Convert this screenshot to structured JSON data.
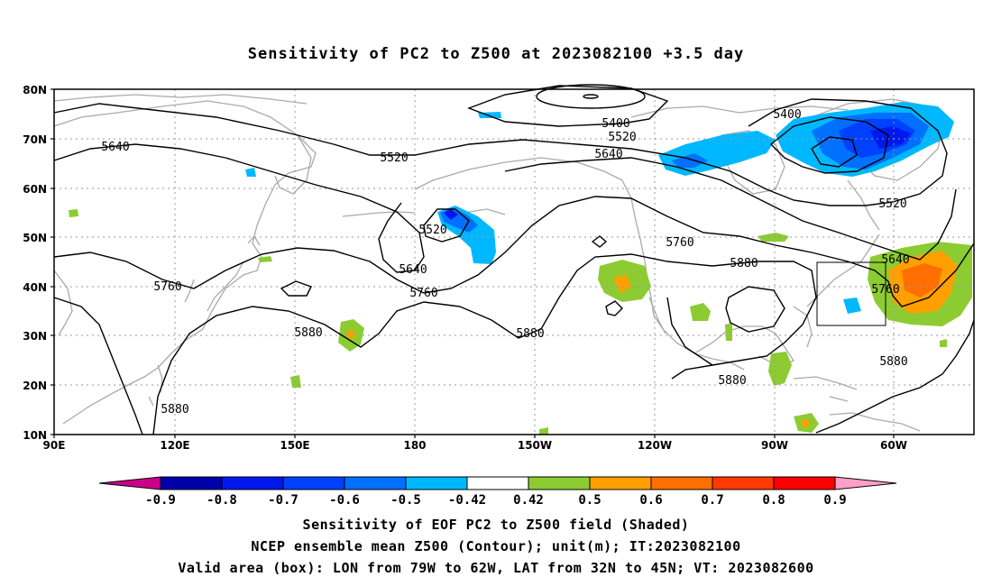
{
  "title": "Sensitivity of PC2 to Z500 at 2023082100 +3.5 day",
  "lat_labels": [
    "80N",
    "70N",
    "60N",
    "50N",
    "40N",
    "30N",
    "20N",
    "10N"
  ],
  "lon_labels": [
    "90E",
    "120E",
    "150E",
    "180",
    "150W",
    "120W",
    "90W",
    "60W"
  ],
  "contour_labels": {
    "c5400a": "5400",
    "c5400b": "5400",
    "c5520a": "5520",
    "c5520b": "5520",
    "c5520c": "5520",
    "c5520d": "5520",
    "c5640a": "5640",
    "c5640b": "5640",
    "c5640c": "5640",
    "c5640d": "5640",
    "c5760a": "5760",
    "c5760b": "5760",
    "c5760c": "5760",
    "c5760d": "5760",
    "c5880a": "5880",
    "c5880b": "5880",
    "c5880c": "5880",
    "c5880d": "5880",
    "c5880e": "5880",
    "c5880f": "5880"
  },
  "colorbar": {
    "labels": [
      "-0.9",
      "-0.8",
      "-0.7",
      "-0.6",
      "-0.5",
      "-0.42",
      "0.42",
      "0.5",
      "0.6",
      "0.7",
      "0.8",
      "0.9"
    ],
    "colors": [
      "#0000aa",
      "#0018ee",
      "#0040ff",
      "#0070ff",
      "#00b8ff",
      "#ffffff",
      "#8ccc32",
      "#ffa000",
      "#ff6e00",
      "#ff3a00",
      "#ff0000"
    ],
    "low_color": "#cc0088",
    "high_color": "#ffa0c8"
  },
  "captions": {
    "line1": "Sensitivity of EOF PC2 to Z500 field (Shaded)",
    "line2": "NCEP ensemble mean Z500 (Contour); unit(m); IT:2023082100",
    "line3": "Valid area (box): LON from 79W to 62W, LAT from 32N to 45N; VT: 2023082600"
  }
}
